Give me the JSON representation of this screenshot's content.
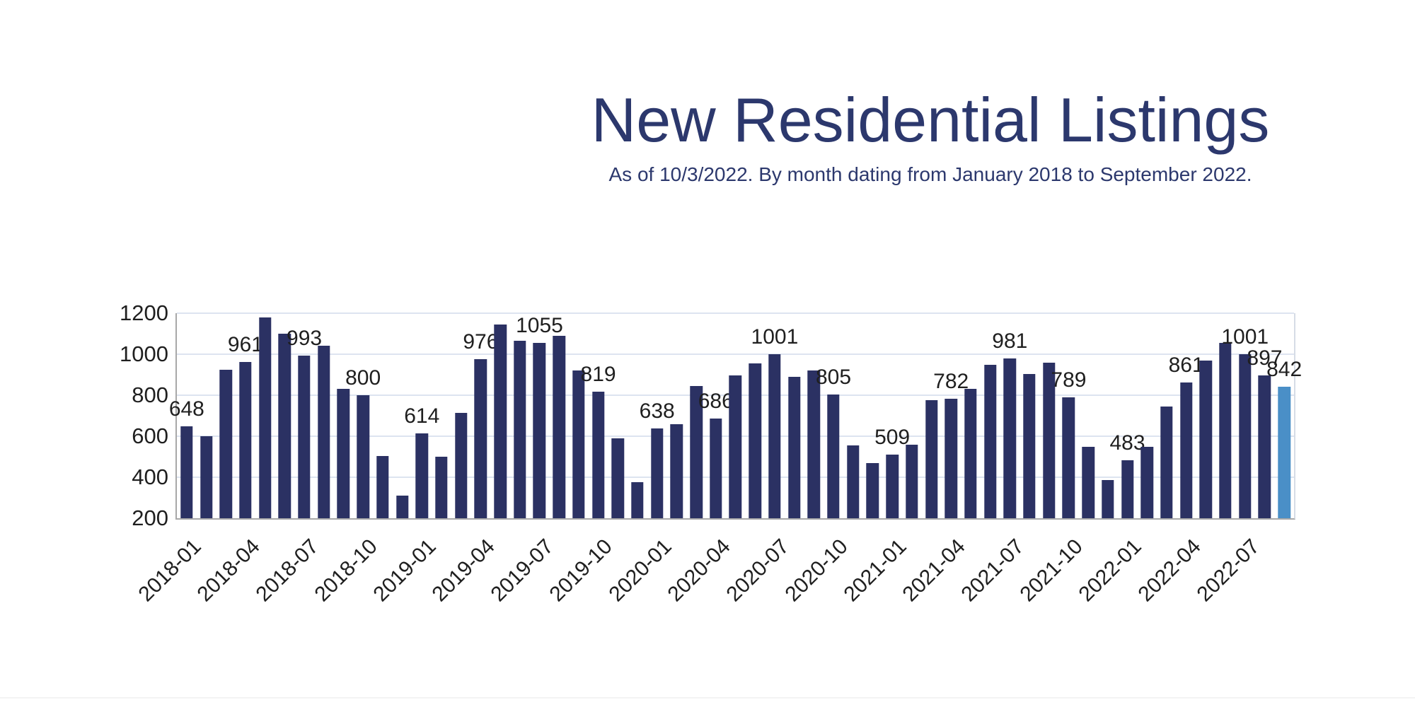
{
  "header": {
    "title": "New Residential Listings",
    "subtitle": "As of 10/3/2022. By month dating from January 2018 to September 2022."
  },
  "chart_data": {
    "type": "bar",
    "title": "New Residential Listings",
    "subtitle": "As of 10/3/2022. By month dating from January 2018 to September 2022.",
    "ylim": [
      200,
      1200
    ],
    "yticks": [
      200,
      400,
      600,
      800,
      1000,
      1200
    ],
    "grid": true,
    "legend": "none",
    "bar_color": "#2b3163",
    "highlight_color": "#4a8fc7",
    "grid_color": "#dde4f0",
    "axis_color": "#a8a8a8",
    "label_color": "#1f1f1f",
    "title_color": "#2c386d",
    "categories": [
      "2018-01",
      "2018-02",
      "2018-03",
      "2018-04",
      "2018-05",
      "2018-06",
      "2018-07",
      "2018-08",
      "2018-09",
      "2018-10",
      "2018-11",
      "2018-12",
      "2019-01",
      "2019-02",
      "2019-03",
      "2019-04",
      "2019-05",
      "2019-06",
      "2019-07",
      "2019-08",
      "2019-09",
      "2019-10",
      "2019-11",
      "2019-12",
      "2020-01",
      "2020-02",
      "2020-03",
      "2020-04",
      "2020-05",
      "2020-06",
      "2020-07",
      "2020-08",
      "2020-09",
      "2020-10",
      "2020-11",
      "2020-12",
      "2021-01",
      "2021-02",
      "2021-03",
      "2021-04",
      "2021-05",
      "2021-06",
      "2021-07",
      "2021-08",
      "2021-09",
      "2021-10",
      "2021-11",
      "2021-12",
      "2022-01",
      "2022-02",
      "2022-03",
      "2022-04",
      "2022-05",
      "2022-06",
      "2022-07",
      "2022-08",
      "2022-09"
    ],
    "values": [
      648,
      600,
      925,
      961,
      1180,
      1100,
      993,
      1040,
      830,
      800,
      505,
      310,
      614,
      500,
      715,
      976,
      1145,
      1065,
      1055,
      1090,
      920,
      819,
      590,
      375,
      638,
      660,
      845,
      686,
      895,
      955,
      1001,
      890,
      920,
      805,
      555,
      470,
      509,
      560,
      775,
      782,
      830,
      950,
      981,
      905,
      960,
      789,
      550,
      385,
      483,
      550,
      745,
      861,
      970,
      1055,
      1001,
      897,
      842
    ],
    "xtick_labels": [
      "2018-01",
      "2018-04",
      "2018-07",
      "2018-10",
      "2019-01",
      "2019-04",
      "2019-07",
      "2019-10",
      "2020-01",
      "2020-04",
      "2020-07",
      "2020-10",
      "2021-01",
      "2021-04",
      "2021-07",
      "2021-10",
      "2022-01",
      "2022-04",
      "2022-07"
    ],
    "value_labels_shown_for": [
      "2018-01",
      "2018-04",
      "2018-07",
      "2018-10",
      "2019-01",
      "2019-04",
      "2019-07",
      "2019-10",
      "2020-01",
      "2020-04",
      "2020-07",
      "2020-10",
      "2021-01",
      "2021-04",
      "2021-07",
      "2021-10",
      "2022-01",
      "2022-04",
      "2022-07",
      "2022-08",
      "2022-09"
    ],
    "highlight_category": "2022-09"
  }
}
